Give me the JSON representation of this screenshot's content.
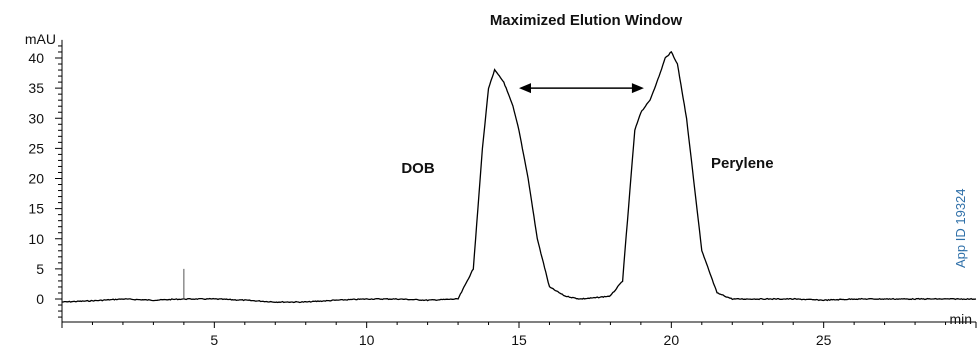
{
  "chart_data": {
    "type": "line",
    "title": "Maximized Elution Window",
    "xlabel": "min",
    "ylabel": "mAU",
    "xlim": [
      0,
      30
    ],
    "ylim": [
      -4,
      43
    ],
    "x_ticks": [
      5,
      10,
      15,
      20,
      25
    ],
    "y_ticks": [
      0,
      5,
      10,
      15,
      20,
      25,
      30,
      35,
      40
    ],
    "grid": false,
    "series": [
      {
        "color": "#000000",
        "x": [
          0,
          1,
          2,
          3,
          4,
          5,
          6,
          7,
          8,
          9,
          10,
          11,
          12,
          13,
          13.5,
          13.8,
          14.0,
          14.2,
          14.5,
          14.8,
          15.0,
          15.3,
          15.6,
          16.0,
          16.5,
          17.0,
          17.5,
          18.0,
          18.4,
          18.8,
          19.0,
          19.3,
          19.6,
          19.8,
          20.0,
          20.2,
          20.5,
          21.0,
          21.5,
          22,
          23,
          24,
          25,
          26,
          27,
          28,
          29,
          30
        ],
        "y": [
          -0.5,
          -0.3,
          0,
          -0.2,
          0,
          0,
          -0.2,
          -0.5,
          -0.5,
          -0.2,
          0,
          0,
          -0.2,
          0,
          5,
          25,
          35,
          38,
          36,
          32,
          28,
          20,
          10,
          2,
          0.5,
          0,
          0.2,
          0.5,
          3,
          28,
          31,
          33,
          37,
          40,
          41,
          39,
          30,
          8,
          1,
          0,
          0,
          0,
          -0.2,
          0,
          0,
          0,
          0,
          0
        ]
      }
    ],
    "spikes": [
      {
        "x": 4.0,
        "y": 5
      }
    ],
    "peaks": [
      {
        "label": "DOB",
        "x": 14.2
      },
      {
        "label": "Perylene",
        "x": 19.9
      }
    ],
    "window_arrow": {
      "x_start": 15.0,
      "x_end": 19.1,
      "y": 35
    }
  },
  "watermark": "App ID 19324"
}
